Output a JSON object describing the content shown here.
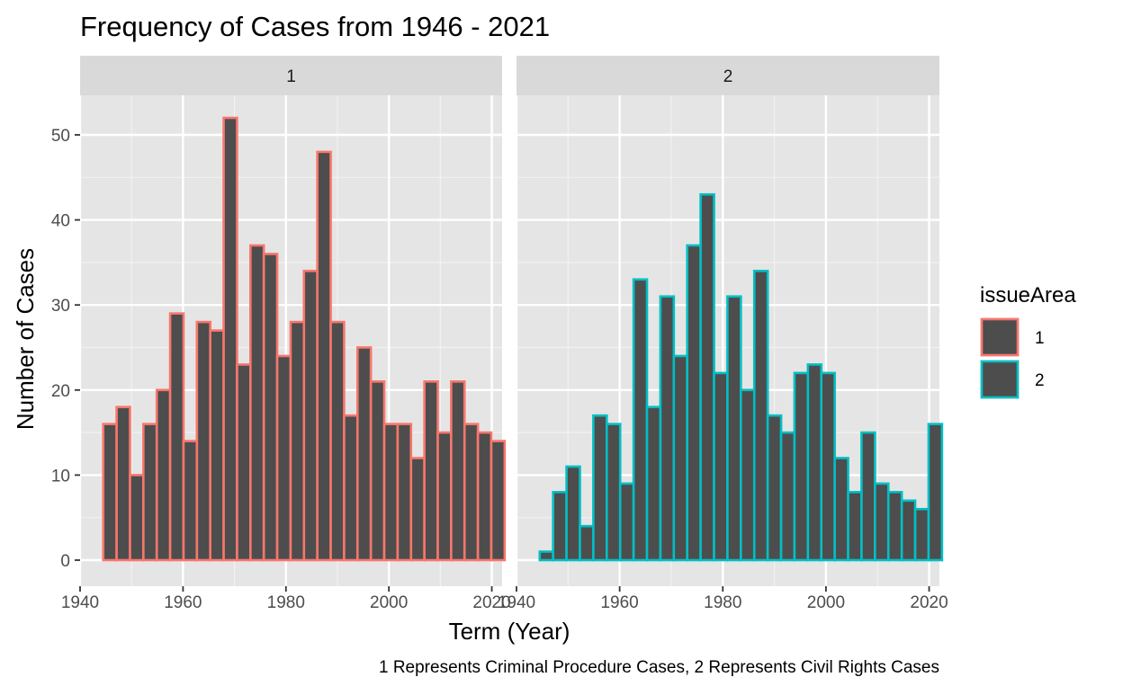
{
  "chart_data": {
    "type": "bar",
    "title": "Frequency of Cases from 1946 - 2021",
    "xlabel": "Term (Year)",
    "ylabel": "Number of Cases",
    "caption": "1 Represents Criminal Procedure Cases, 2 Represents Civil Rights Cases",
    "xlim": [
      1940,
      2022
    ],
    "ylim": [
      0,
      55
    ],
    "x_ticks": [
      1940,
      1960,
      1980,
      2000,
      2020
    ],
    "x_tick_labels": [
      "1940",
      "1960",
      "1980",
      "2000",
      "2020"
    ],
    "y_ticks": [
      0,
      10,
      20,
      30,
      40,
      50
    ],
    "y_tick_labels": [
      "0",
      "10",
      "20",
      "30",
      "40",
      "50"
    ],
    "grid": true,
    "legend": {
      "title": "issueArea",
      "placement": "right",
      "items": [
        {
          "label": "1",
          "color": "#F8766D"
        },
        {
          "label": "2",
          "color": "#00BFC4"
        }
      ]
    },
    "fill_color": "#4D4D4D",
    "panel_background": "#E5E5E5",
    "strip_background": "#D9D9D9",
    "bin_width": 2.6,
    "x": [
      1945.8,
      1948.4,
      1951.0,
      1953.6,
      1956.2,
      1958.8,
      1961.4,
      1964.0,
      1966.6,
      1969.2,
      1971.8,
      1974.4,
      1977.0,
      1979.6,
      1982.2,
      1984.8,
      1987.4,
      1990.0,
      1992.6,
      1995.2,
      1997.8,
      2000.4,
      2003.0,
      2005.6,
      2008.2,
      2010.8,
      2013.4,
      2016.0,
      2018.6,
      2021.2
    ],
    "series": [
      {
        "name": "1",
        "strip": "1",
        "color": "#F8766D",
        "values": [
          16,
          18,
          10,
          16,
          20,
          29,
          14,
          28,
          27,
          52,
          23,
          37,
          36,
          24,
          28,
          34,
          48,
          28,
          17,
          25,
          21,
          16,
          16,
          12,
          21,
          15,
          21,
          16,
          15,
          14
        ]
      },
      {
        "name": "2",
        "strip": "2",
        "color": "#00BFC4",
        "values": [
          1,
          8,
          11,
          4,
          17,
          16,
          9,
          33,
          18,
          31,
          24,
          37,
          43,
          22,
          31,
          20,
          34,
          17,
          15,
          22,
          23,
          22,
          12,
          8,
          15,
          9,
          8,
          7,
          6,
          16
        ]
      }
    ]
  }
}
